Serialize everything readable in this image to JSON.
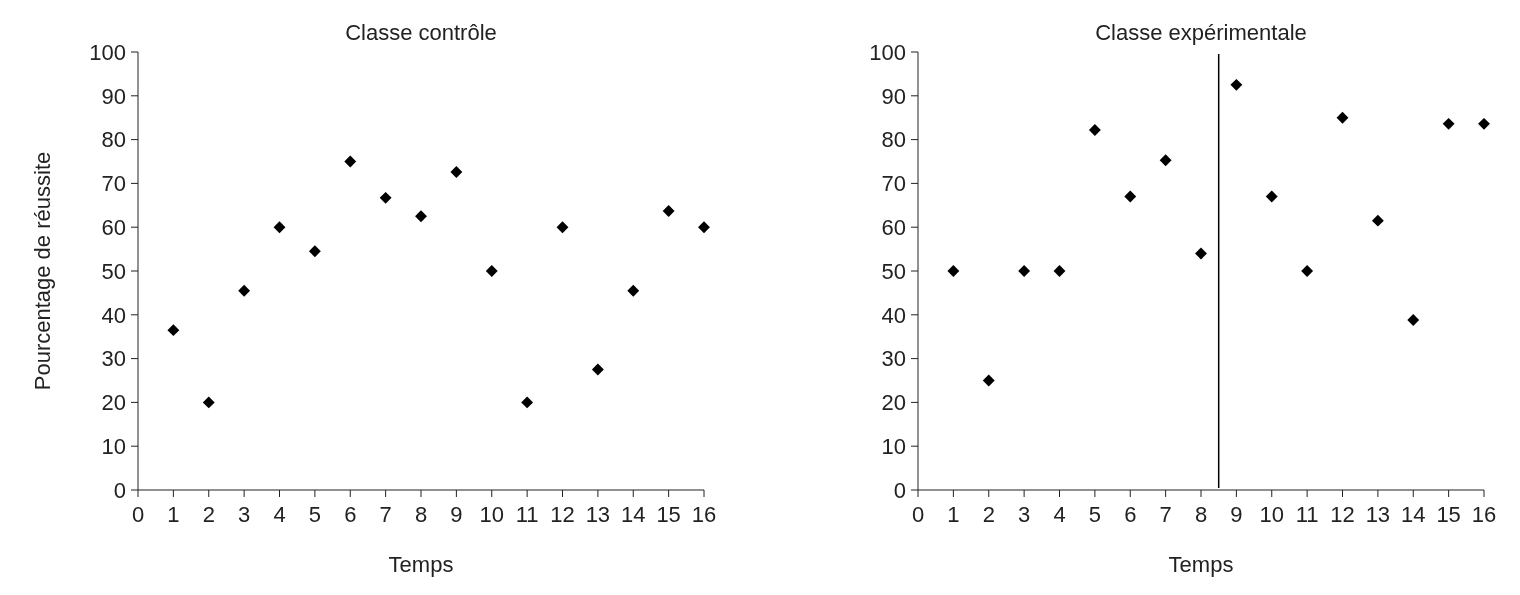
{
  "chart_data": [
    {
      "type": "scatter",
      "title": "Classe contrôle",
      "xlabel": "Temps",
      "ylabel": "Pourcentage de réussite",
      "x": [
        1,
        2,
        3,
        4,
        5,
        6,
        7,
        8,
        9,
        10,
        11,
        12,
        13,
        14,
        15,
        16
      ],
      "series": [
        {
          "color": "#000000",
          "values": [
            36.5,
            20,
            45.5,
            60,
            54.5,
            75,
            66.7,
            62.5,
            72.6,
            50,
            20,
            60,
            27.5,
            45.5,
            63.7,
            60
          ]
        }
      ],
      "xlim": [
        0,
        16
      ],
      "xticks": [
        0,
        1,
        2,
        3,
        4,
        5,
        6,
        7,
        8,
        9,
        10,
        11,
        12,
        13,
        14,
        15,
        16
      ],
      "ylim": [
        0,
        100
      ],
      "yticks": [
        0,
        10,
        20,
        30,
        40,
        50,
        60,
        70,
        80,
        90,
        100
      ],
      "marker": "diamond",
      "grid": false
    },
    {
      "type": "scatter",
      "title": "Classe expérimentale",
      "xlabel": "Temps",
      "x": [
        1,
        2,
        3,
        4,
        5,
        6,
        7,
        8,
        9,
        10,
        11,
        12,
        13,
        14,
        15,
        16
      ],
      "series": [
        {
          "color": "#000000",
          "values": [
            50,
            25,
            50,
            50,
            82.2,
            67,
            75.3,
            54,
            92.5,
            67,
            50,
            85,
            61.5,
            38.8,
            83.6,
            83.6
          ]
        }
      ],
      "xlim": [
        0,
        16
      ],
      "xticks": [
        0,
        1,
        2,
        3,
        4,
        5,
        6,
        7,
        8,
        9,
        10,
        11,
        12,
        13,
        14,
        15,
        16
      ],
      "ylim": [
        0,
        100
      ],
      "yticks": [
        0,
        10,
        20,
        30,
        40,
        50,
        60,
        70,
        80,
        90,
        100
      ],
      "marker": "diamond",
      "grid": false,
      "ref_lines": [
        {
          "axis": "x",
          "value": 8.5,
          "color": "#000000"
        }
      ]
    }
  ]
}
